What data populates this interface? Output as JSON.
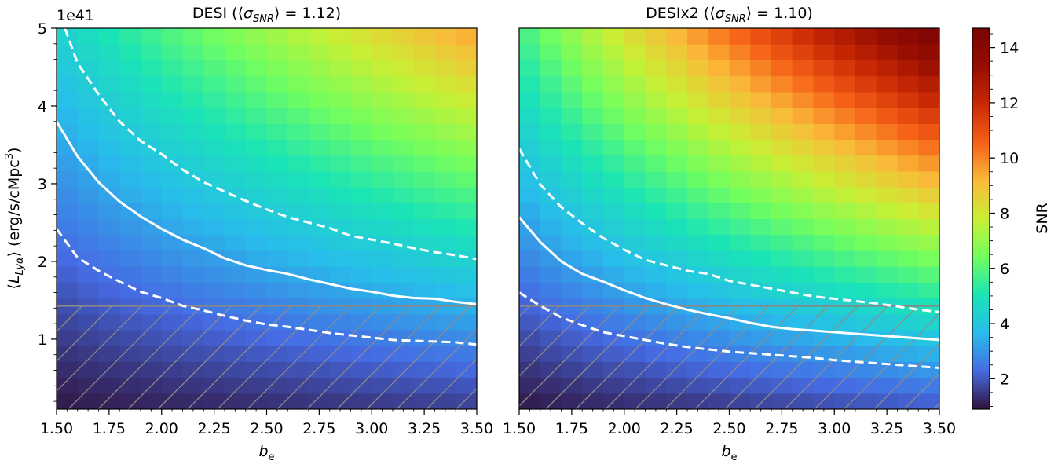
{
  "figure": {
    "offset_label": "1e41",
    "ylabel": "⟨L_Lyα⟩ (erg/s/cMpc³)",
    "xlabel": "b_e",
    "colorbar_label": "SNR",
    "colorbar_ticks": [
      "2",
      "4",
      "6",
      "8",
      "10",
      "12",
      "14"
    ]
  },
  "chart_data": [
    {
      "type": "heatmap",
      "title": "DESI (⟨σ_SNR⟩ = 1.12)",
      "xlabel": "b_e",
      "ylabel": "⟨L_Lyα⟩ (erg/s/cMpc³)",
      "xlim": [
        1.5,
        3.5
      ],
      "ylim": [
        0.1,
        5.0
      ],
      "y_scale_factor": "1e41",
      "xticks": [
        "1.50",
        "1.75",
        "2.00",
        "2.25",
        "2.50",
        "2.75",
        "3.00",
        "3.25",
        "3.50"
      ],
      "yticks": [
        "1",
        "2",
        "3",
        "4",
        "5"
      ],
      "snr_range": [
        0.9,
        14.7
      ],
      "snr_at_corners": {
        "x1.5_y0.1": 1.0,
        "x3.5_y0.1": 1.6,
        "x1.5_y5.0": 4.3,
        "x3.5_y5.0": 9.6
      },
      "contours": [
        {
          "style": "solid",
          "color": "#ffffff",
          "x": [
            1.5,
            1.6,
            1.7,
            1.8,
            1.9,
            2.0,
            2.1,
            2.2,
            2.3,
            2.4,
            2.5,
            2.6,
            2.7,
            2.8,
            2.9,
            3.0,
            3.1,
            3.2,
            3.3,
            3.4,
            3.5
          ],
          "y": [
            3.8,
            3.35,
            3.02,
            2.77,
            2.58,
            2.42,
            2.28,
            2.17,
            2.04,
            1.95,
            1.89,
            1.84,
            1.77,
            1.71,
            1.65,
            1.61,
            1.56,
            1.53,
            1.52,
            1.48,
            1.45
          ]
        },
        {
          "style": "dashed",
          "color": "#ffffff",
          "x": [
            1.54,
            1.6,
            1.7,
            1.8,
            1.9,
            2.0,
            2.1,
            2.2,
            2.3,
            2.4,
            2.5,
            2.6,
            2.7,
            2.8,
            2.9,
            3.0,
            3.1,
            3.2,
            3.3,
            3.4,
            3.5
          ],
          "y": [
            5.0,
            4.55,
            4.15,
            3.8,
            3.55,
            3.38,
            3.18,
            3.02,
            2.9,
            2.78,
            2.67,
            2.57,
            2.5,
            2.43,
            2.33,
            2.28,
            2.23,
            2.17,
            2.12,
            2.08,
            2.03
          ]
        },
        {
          "style": "dashed",
          "color": "#ffffff",
          "x": [
            1.5,
            1.6,
            1.7,
            1.8,
            1.9,
            2.0,
            2.1,
            2.2,
            2.3,
            2.4,
            2.5,
            2.6,
            2.7,
            2.8,
            2.9,
            3.0,
            3.1,
            3.2,
            3.3,
            3.4,
            3.5
          ],
          "y": [
            2.42,
            2.05,
            1.88,
            1.74,
            1.61,
            1.53,
            1.43,
            1.37,
            1.3,
            1.24,
            1.19,
            1.16,
            1.12,
            1.08,
            1.05,
            1.02,
            0.99,
            0.98,
            0.97,
            0.96,
            0.93
          ]
        }
      ],
      "threshold_line": {
        "y": 1.43,
        "color": "#888888",
        "hatched_region": "below"
      }
    },
    {
      "type": "heatmap",
      "title": "DESIx2 (⟨σ_SNR⟩ = 1.10)",
      "xlabel": "b_e",
      "xlim": [
        1.5,
        3.5
      ],
      "ylim": [
        0.1,
        5.0
      ],
      "xticks": [
        "1.50",
        "1.75",
        "2.00",
        "2.25",
        "2.50",
        "2.75",
        "3.00",
        "3.25",
        "3.50"
      ],
      "snr_range": [
        0.9,
        14.7
      ],
      "snr_at_corners": {
        "x1.5_y0.1": 1.0,
        "x3.5_y0.1": 2.0,
        "x1.5_y5.0": 5.6,
        "x3.5_y5.0": 14.7
      },
      "contours": [
        {
          "style": "solid",
          "color": "#ffffff",
          "x": [
            1.5,
            1.6,
            1.7,
            1.8,
            1.9,
            2.0,
            2.1,
            2.2,
            2.3,
            2.4,
            2.5,
            2.6,
            2.7,
            2.8,
            2.9,
            3.0,
            3.1,
            3.2,
            3.3,
            3.4,
            3.5
          ],
          "y": [
            2.57,
            2.25,
            2.0,
            1.84,
            1.74,
            1.63,
            1.53,
            1.45,
            1.38,
            1.32,
            1.27,
            1.21,
            1.16,
            1.13,
            1.11,
            1.09,
            1.07,
            1.05,
            1.03,
            1.01,
            0.99
          ]
        },
        {
          "style": "dashed",
          "color": "#ffffff",
          "x": [
            1.5,
            1.6,
            1.7,
            1.8,
            1.9,
            2.0,
            2.1,
            2.2,
            2.3,
            2.4,
            2.5,
            2.6,
            2.7,
            2.8,
            2.9,
            3.0,
            3.1,
            3.2,
            3.3,
            3.4,
            3.5
          ],
          "y": [
            3.45,
            2.99,
            2.7,
            2.49,
            2.3,
            2.15,
            2.02,
            1.95,
            1.88,
            1.84,
            1.75,
            1.7,
            1.65,
            1.6,
            1.55,
            1.52,
            1.49,
            1.46,
            1.42,
            1.38,
            1.35
          ]
        },
        {
          "style": "dashed",
          "color": "#ffffff",
          "x": [
            1.5,
            1.6,
            1.7,
            1.8,
            1.9,
            2.0,
            2.1,
            2.2,
            2.3,
            2.4,
            2.5,
            2.6,
            2.7,
            2.8,
            2.9,
            3.0,
            3.1,
            3.2,
            3.3,
            3.4,
            3.5
          ],
          "y": [
            1.6,
            1.43,
            1.28,
            1.18,
            1.09,
            1.04,
            0.99,
            0.94,
            0.9,
            0.87,
            0.84,
            0.82,
            0.8,
            0.78,
            0.76,
            0.73,
            0.71,
            0.69,
            0.67,
            0.65,
            0.63
          ]
        }
      ],
      "threshold_line": {
        "y": 1.43,
        "color": "#888888",
        "hatched_region": "below"
      }
    }
  ]
}
